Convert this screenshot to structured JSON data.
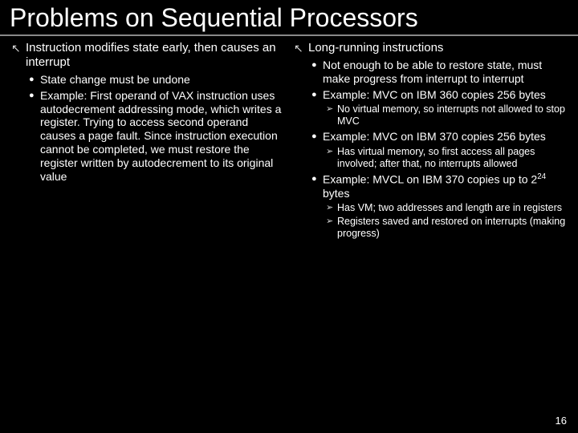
{
  "title": "Problems on Sequential Processors",
  "pagenum": "16",
  "bullets": {
    "arrow": "↖",
    "disc": "●",
    "tri": "➢"
  },
  "left": {
    "h": "Instruction modifies state early, then causes an interrupt",
    "items": [
      "State change must be undone",
      "Example: First operand of VAX instruction uses autodecrement addressing mode, which writes a register. Trying to access second operand causes a page fault. Since instruction execution cannot be completed, we must restore the register written by autodecrement to its original value"
    ]
  },
  "right": {
    "h": "Long-running instructions",
    "i1": "Not enough to be able to restore state, must make progress from interrupt to interrupt",
    "i2": "Example: MVC on IBM 360 copies 256 bytes",
    "i2s": [
      "No virtual memory, so interrupts not allowed to stop MVC"
    ],
    "i3": "Example: MVC on IBM 370 copies 256 bytes",
    "i3s": [
      "Has virtual memory, so first access all pages involved; after that, no interrupts allowed"
    ],
    "i4_pre": "Example: MVCL on IBM 370 copies up to 2",
    "i4_sup": "24",
    "i4_post": " bytes",
    "i4s": [
      "Has VM; two addresses and length are in registers",
      "Registers saved and restored on interrupts (making progress)"
    ]
  }
}
